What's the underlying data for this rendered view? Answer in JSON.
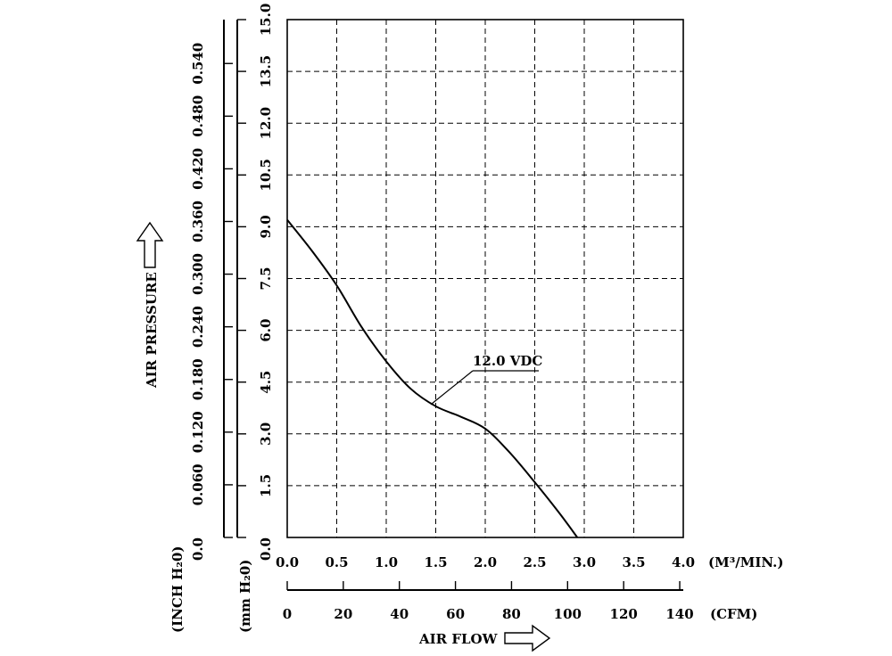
{
  "chart_data": {
    "type": "line",
    "title": "",
    "x_axis": {
      "label": "AIR FLOW",
      "unit": "(M³/MIN.)",
      "range": [
        0,
        4
      ],
      "ticks": [
        "0.0",
        "0.5",
        "1.0",
        "1.5",
        "2.0",
        "2.5",
        "3.0",
        "3.5",
        "4.0"
      ]
    },
    "x_axis_secondary": {
      "unit": "(CFM)",
      "range": [
        0,
        141.26
      ],
      "ticks": [
        "0",
        "20",
        "40",
        "60",
        "80",
        "100",
        "120",
        "140"
      ],
      "tick_values": [
        0,
        20,
        40,
        60,
        80,
        100,
        120,
        140
      ]
    },
    "y_axis": {
      "label": "AIR PRESSURE",
      "unit": "(mm H₂0)",
      "range": [
        0,
        15
      ],
      "ticks": [
        "0.0",
        "1.5",
        "3.0",
        "4.5",
        "6.0",
        "7.5",
        "9.0",
        "10.5",
        "12.0",
        "13.5",
        "15.0"
      ]
    },
    "y_axis_secondary": {
      "unit": "(INCH H₂0)",
      "range": [
        0,
        0.59
      ],
      "ticks": [
        "0.0",
        "0.060",
        "0.120",
        "0.180",
        "0.240",
        "0.300",
        "0.360",
        "0.420",
        "0.480",
        "0.540"
      ],
      "tick_values": [
        0,
        0.06,
        0.12,
        0.18,
        0.24,
        0.3,
        0.36,
        0.42,
        0.48,
        0.54
      ]
    },
    "grid": true,
    "series": [
      {
        "name": "12.0 VDC",
        "color": "#000000",
        "x": [
          0.0,
          0.25,
          0.5,
          0.75,
          1.0,
          1.25,
          1.5,
          1.75,
          2.0,
          2.25,
          2.5,
          2.75,
          2.93
        ],
        "y": [
          9.2,
          8.3,
          7.3,
          6.1,
          5.1,
          4.3,
          3.8,
          3.5,
          3.15,
          2.45,
          1.6,
          0.7,
          0.0
        ]
      }
    ],
    "annotation": {
      "text": "12.0 VDC"
    }
  }
}
